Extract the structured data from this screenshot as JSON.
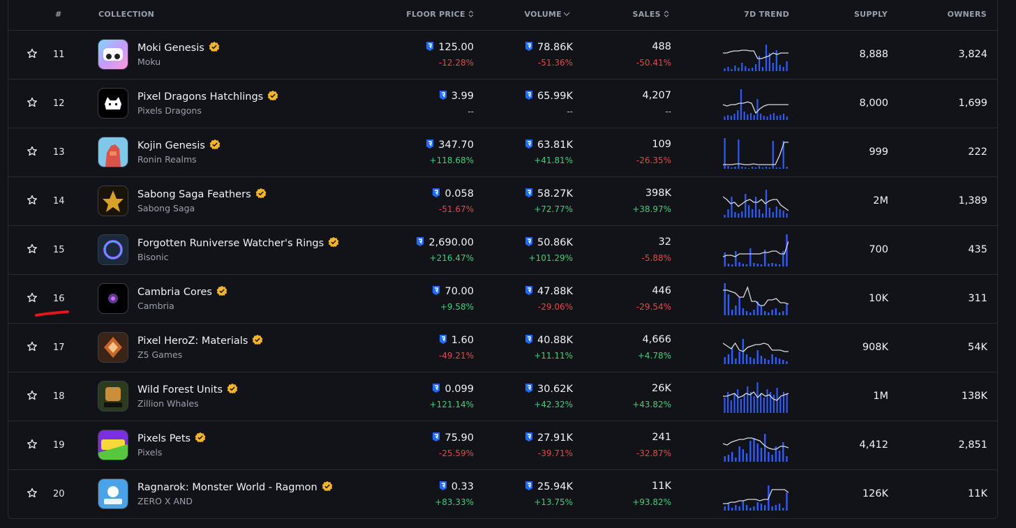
{
  "header": {
    "rank": "#",
    "collection": "COLLECTION",
    "floor_price": "FLOOR PRICE",
    "volume": "VOLUME",
    "sales": "SALES",
    "trend": "7D TREND",
    "supply": "SUPPLY",
    "owners": "OWNERS"
  },
  "colors": {
    "negative": "#e5484d",
    "positive": "#3ecf7a",
    "verified": "#f4b52c",
    "ronin": "#1f6bff",
    "trend_bar": "#2f5cff",
    "trend_line": "#d9dce3"
  },
  "rows": [
    {
      "rank": "11",
      "name": "Moki Genesis",
      "creator": "Moku",
      "floor": "125.00",
      "floor_chg": "-12.28%",
      "floor_dir": "neg",
      "volume": "78.86K",
      "volume_chg": "-51.36%",
      "volume_dir": "neg",
      "sales": "488",
      "sales_chg": "-50.41%",
      "sales_dir": "neg",
      "supply": "8,888",
      "owners": "3,824",
      "icon": "moki-genesis-avatar"
    },
    {
      "rank": "12",
      "name": "Pixel Dragons Hatchlings",
      "creator": "Pixels Dragons",
      "floor": "3.99",
      "floor_chg": "--",
      "floor_dir": "neu",
      "volume": "65.99K",
      "volume_chg": "--",
      "volume_dir": "neu",
      "sales": "4,207",
      "sales_chg": "--",
      "sales_dir": "neu",
      "supply": "8,000",
      "owners": "1,699",
      "icon": "pixel-dragons-avatar"
    },
    {
      "rank": "13",
      "name": "Kojin Genesis",
      "creator": "Ronin Realms",
      "floor": "347.70",
      "floor_chg": "+118.68%",
      "floor_dir": "pos",
      "volume": "63.81K",
      "volume_chg": "+41.81%",
      "volume_dir": "pos",
      "sales": "109",
      "sales_chg": "-26.35%",
      "sales_dir": "neg",
      "supply": "999",
      "owners": "222",
      "icon": "kojin-genesis-avatar"
    },
    {
      "rank": "14",
      "name": "Sabong Saga Feathers",
      "creator": "Sabong Saga",
      "floor": "0.058",
      "floor_chg": "-51.67%",
      "floor_dir": "neg",
      "volume": "58.27K",
      "volume_chg": "+72.77%",
      "volume_dir": "pos",
      "sales": "398K",
      "sales_chg": "+38.97%",
      "sales_dir": "pos",
      "supply": "2M",
      "owners": "1,389",
      "icon": "sabong-saga-avatar"
    },
    {
      "rank": "15",
      "name": "Forgotten Runiverse Watcher's Rings",
      "creator": "Bisonic",
      "floor": "2,690.00",
      "floor_chg": "+216.47%",
      "floor_dir": "pos",
      "volume": "50.86K",
      "volume_chg": "+101.29%",
      "volume_dir": "pos",
      "sales": "32",
      "sales_chg": "-5.88%",
      "sales_dir": "neg",
      "supply": "700",
      "owners": "435",
      "icon": "watcher-rings-avatar"
    },
    {
      "rank": "16",
      "name": "Cambria Cores",
      "creator": "Cambria",
      "floor": "70.00",
      "floor_chg": "+9.58%",
      "floor_dir": "pos",
      "volume": "47.88K",
      "volume_chg": "-29.06%",
      "volume_dir": "neg",
      "sales": "446",
      "sales_chg": "-29.54%",
      "sales_dir": "neg",
      "supply": "10K",
      "owners": "311",
      "icon": "cambria-cores-avatar"
    },
    {
      "rank": "17",
      "name": "Pixel HeroZ: Materials",
      "creator": "Z5 Games",
      "floor": "1.60",
      "floor_chg": "-49.21%",
      "floor_dir": "neg",
      "volume": "40.88K",
      "volume_chg": "+11.11%",
      "volume_dir": "pos",
      "sales": "4,666",
      "sales_chg": "+4.78%",
      "sales_dir": "pos",
      "supply": "908K",
      "owners": "54K",
      "icon": "pixel-heroz-avatar"
    },
    {
      "rank": "18",
      "name": "Wild Forest Units",
      "creator": "Zillion Whales",
      "floor": "0.099",
      "floor_chg": "+121.14%",
      "floor_dir": "pos",
      "volume": "30.62K",
      "volume_chg": "+42.32%",
      "volume_dir": "pos",
      "sales": "26K",
      "sales_chg": "+43.82%",
      "sales_dir": "pos",
      "supply": "1M",
      "owners": "138K",
      "icon": "wild-forest-avatar"
    },
    {
      "rank": "19",
      "name": "Pixels Pets",
      "creator": "Pixels",
      "floor": "75.90",
      "floor_chg": "-25.59%",
      "floor_dir": "neg",
      "volume": "27.91K",
      "volume_chg": "-39.71%",
      "volume_dir": "neg",
      "sales": "241",
      "sales_chg": "-32.87%",
      "sales_dir": "neg",
      "supply": "4,412",
      "owners": "2,851",
      "icon": "pixels-pets-avatar"
    },
    {
      "rank": "20",
      "name": "Ragnarok: Monster World - Ragmon",
      "creator": "ZERO X AND",
      "floor": "0.33",
      "floor_chg": "+83.33%",
      "floor_dir": "pos",
      "volume": "25.94K",
      "volume_chg": "+13.75%",
      "volume_dir": "pos",
      "sales": "11K",
      "sales_chg": "+93.82%",
      "sales_dir": "pos",
      "supply": "126K",
      "owners": "11K",
      "icon": "ragmon-avatar"
    }
  ]
}
